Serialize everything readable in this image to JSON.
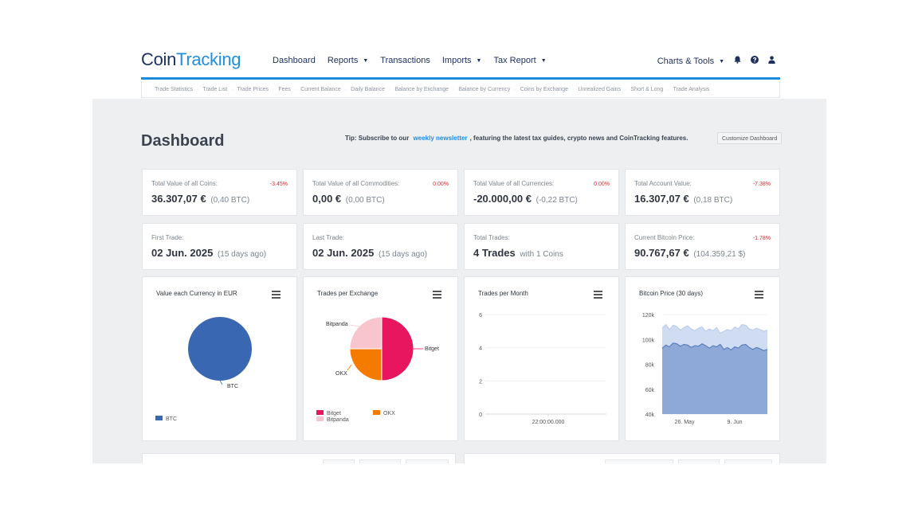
{
  "logo": {
    "part1": "Coin",
    "part2": "Tracking"
  },
  "nav": {
    "items": [
      {
        "label": "Dashboard",
        "caret": false
      },
      {
        "label": "Reports",
        "caret": true
      },
      {
        "label": "Transactions",
        "caret": false
      },
      {
        "label": "Imports",
        "caret": true
      },
      {
        "label": "Tax Report",
        "caret": true
      }
    ],
    "right_label": "Charts & Tools",
    "icons": [
      "bell-icon",
      "help-icon",
      "user-icon"
    ]
  },
  "subnav": [
    "Trade Statistics",
    "Trade List",
    "Trade Prices",
    "Fees",
    "Current Balance",
    "Daily Balance",
    "Balance by Exchange",
    "Balance by Currency",
    "Coins by Exchange",
    "Unrealized Gains",
    "Short & Long",
    "Trade Analysis"
  ],
  "page": {
    "title": "Dashboard",
    "tip_prefix": "Tip: Subscribe to our",
    "tip_link": "weekly newsletter",
    "tip_suffix": ", featuring the latest tax guides, crypto news and CoinTracking features.",
    "customize_label": "Customize Dashboard"
  },
  "stats_row1": [
    {
      "label": "Total Value of all Coins:",
      "pct": "-3.45%",
      "value": "36.307,07 €",
      "sub": "(0,40 BTC)"
    },
    {
      "label": "Total Value of all Commodities:",
      "pct": "0.00%",
      "value": "0,00 €",
      "sub": "(0,00 BTC)"
    },
    {
      "label": "Total Value of all Currencies:",
      "pct": "0.00%",
      "value": "-20.000,00 €",
      "sub": "(-0,22 BTC)"
    },
    {
      "label": "Total Account Value:",
      "pct": "-7.38%",
      "value": "16.307,07 €",
      "sub": "(0,18 BTC)"
    }
  ],
  "stats_row2": [
    {
      "label": "First Trade:",
      "pct": "",
      "value": "02 Jun. 2025",
      "sub": "(15 days ago)"
    },
    {
      "label": "Last Trade:",
      "pct": "",
      "value": "02 Jun. 2025",
      "sub": "(15 days ago)"
    },
    {
      "label": "Total Trades:",
      "pct": "",
      "value": "4 Trades",
      "sub": "with 1 Coins"
    },
    {
      "label": "Current Bitcoin Price:",
      "pct": "-1.78%",
      "value": "90.767,67 €",
      "sub": "(104.359,21 $)"
    }
  ],
  "colors": {
    "btc": "#3a67b1",
    "bitget": "#e8155f",
    "okx": "#f57a00",
    "bitpanda": "#f8c5cf",
    "area_price": "#7d9bd1",
    "area_band": "#cfdcf2",
    "accent": "#1b8be0"
  },
  "chart_data": [
    {
      "type": "pie",
      "title": "Value each Currency in EUR",
      "labels": [
        "BTC"
      ],
      "values": [
        100
      ],
      "legend": [
        "BTC"
      ]
    },
    {
      "type": "pie",
      "title": "Trades per Exchange",
      "labels": [
        "Bitget",
        "OKX",
        "Bitpanda"
      ],
      "values": [
        2,
        1,
        1
      ],
      "legend": [
        "Bitget",
        "OKX",
        "Bitpanda"
      ]
    },
    {
      "type": "line",
      "title": "Trades per Month",
      "x_ticks": [
        "22:00:00.000"
      ],
      "y_ticks": [
        "6",
        "4",
        "2",
        "0"
      ],
      "ylim": [
        0,
        6
      ],
      "series": []
    },
    {
      "type": "area",
      "title": "Bitcoin Price (30 days)",
      "x_ticks": [
        "26. May",
        "9. Jun"
      ],
      "y_ticks": [
        "120k",
        "100k",
        "80k",
        "60k",
        "40k"
      ],
      "ylim": [
        40000,
        120000
      ],
      "series": [
        {
          "values": [
            93000,
            95500,
            94000,
            97000,
            96500,
            94500,
            96000,
            95500,
            93500,
            95000,
            94500,
            96500,
            95000,
            93000,
            95000,
            94000,
            96000,
            92000,
            93500,
            91500,
            94000,
            93000,
            95500,
            96000,
            93500,
            92000,
            93500,
            92500,
            91000,
            92000
          ]
        },
        {
          "values": [
            109000,
            112000,
            108000,
            111500,
            110500,
            107500,
            109500,
            111000,
            108500,
            107000,
            109000,
            110000,
            106500,
            108500,
            107000,
            109500,
            105000,
            106500,
            108000,
            107000,
            110000,
            108500,
            112000,
            111500,
            108500,
            107500,
            109000,
            108000,
            106500,
            107500
          ]
        }
      ]
    }
  ]
}
